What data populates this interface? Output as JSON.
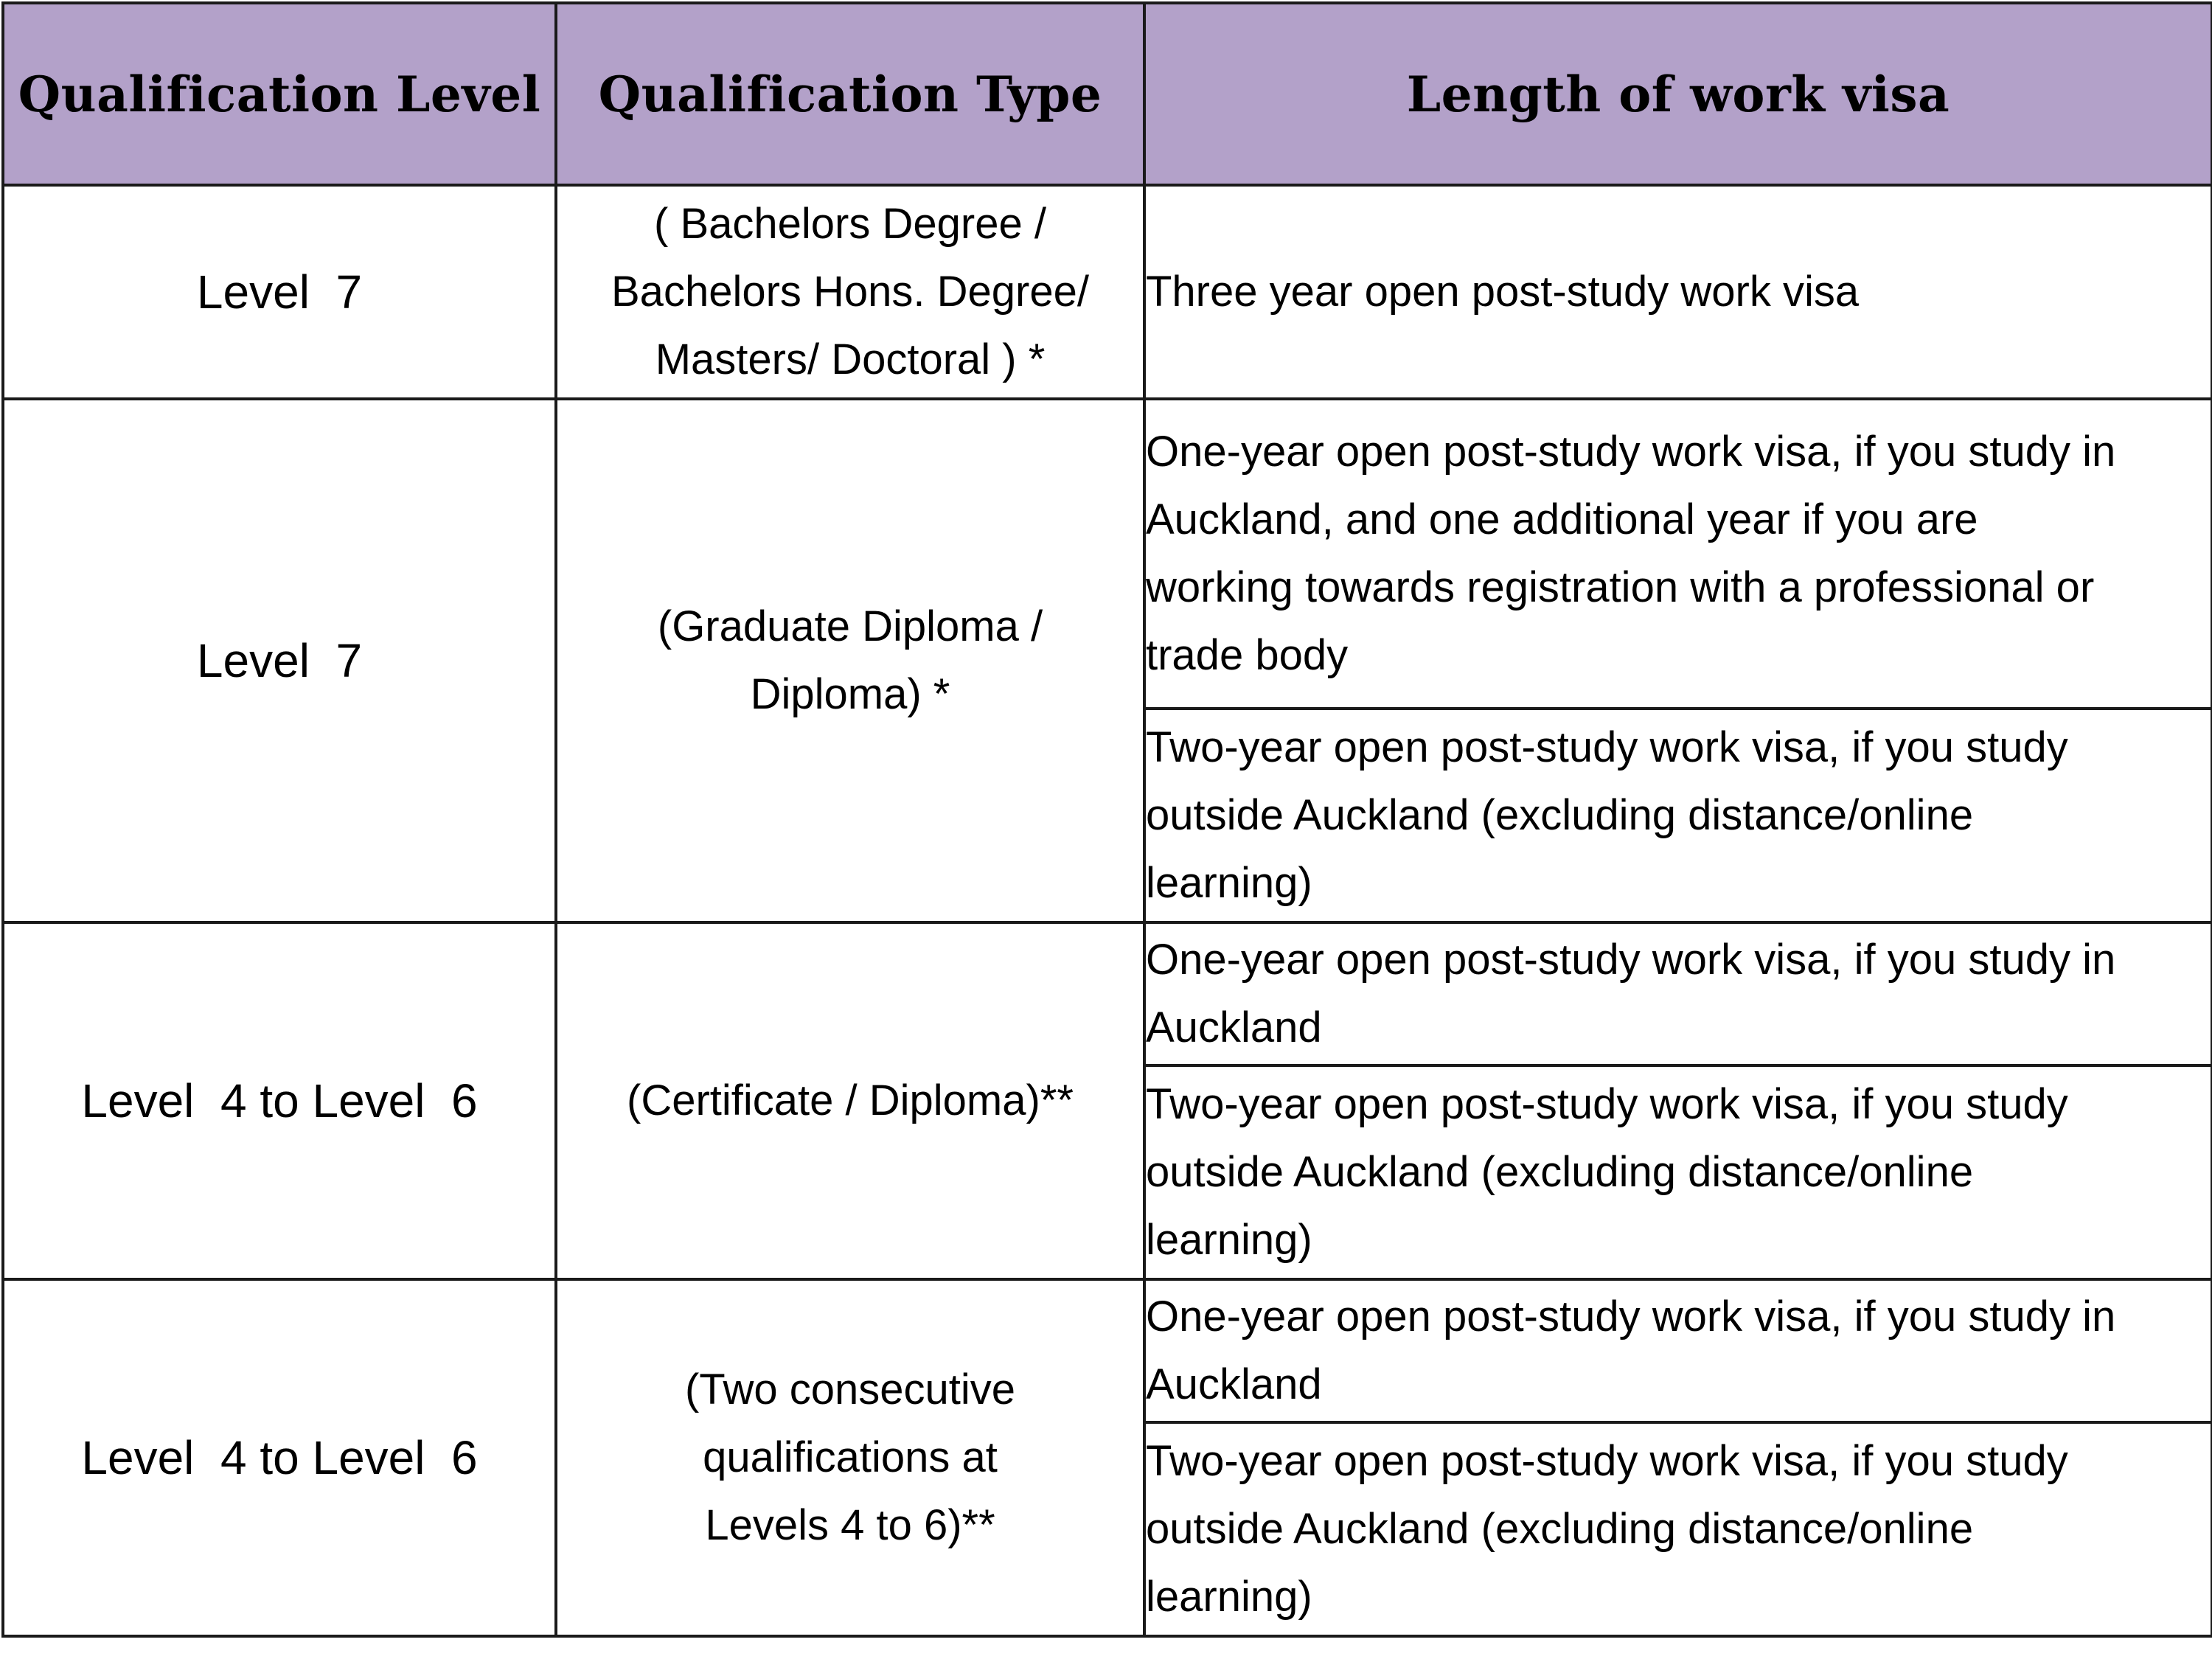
{
  "header": {
    "col1": "Qualification Level",
    "col2": "Qualification Type",
    "col3": "Length of work visa"
  },
  "rows": [
    {
      "level": "Level  7",
      "type_lines": [
        "( Bachelors Degree /",
        "Bachelors Hons. Degree/",
        "Masters/ Doctoral ) *"
      ],
      "lengths": [
        {
          "lines": [
            "Three year open post-study work visa"
          ]
        }
      ]
    },
    {
      "level": "Level  7",
      "type_lines": [
        "(Graduate Diploma /",
        "Diploma) *"
      ],
      "lengths": [
        {
          "lines": [
            "One-year open post-study work visa, if you study in",
            "Auckland, and one additional year if you are",
            "working towards registration with a professional or",
            "trade body"
          ]
        },
        {
          "lines": [
            "Two-year open post-study work visa, if you study",
            "outside Auckland (excluding distance/online",
            "learning)"
          ]
        }
      ]
    },
    {
      "level": "Level  4 to Level  6",
      "type_lines": [
        "(Certificate / Diploma)**"
      ],
      "lengths": [
        {
          "lines": [
            "One-year open post-study work visa, if you study in",
            "Auckland"
          ]
        },
        {
          "lines": [
            "Two-year open post-study work visa, if you study",
            "outside Auckland (excluding distance/online",
            "learning)"
          ]
        }
      ]
    },
    {
      "level": "Level  4 to Level  6",
      "type_lines": [
        "(Two consecutive",
        "qualifications at",
        "Levels 4 to 6)**"
      ],
      "lengths": [
        {
          "lines": [
            "One-year open post-study work visa, if you study in",
            "Auckland"
          ]
        },
        {
          "lines": [
            "Two-year open post-study work visa, if you study",
            "outside Auckland (excluding distance/online",
            "learning)"
          ]
        }
      ]
    }
  ],
  "colors": {
    "header_bg": "#b3a1c9",
    "border": "#1a1a1a",
    "text": "#000000"
  }
}
